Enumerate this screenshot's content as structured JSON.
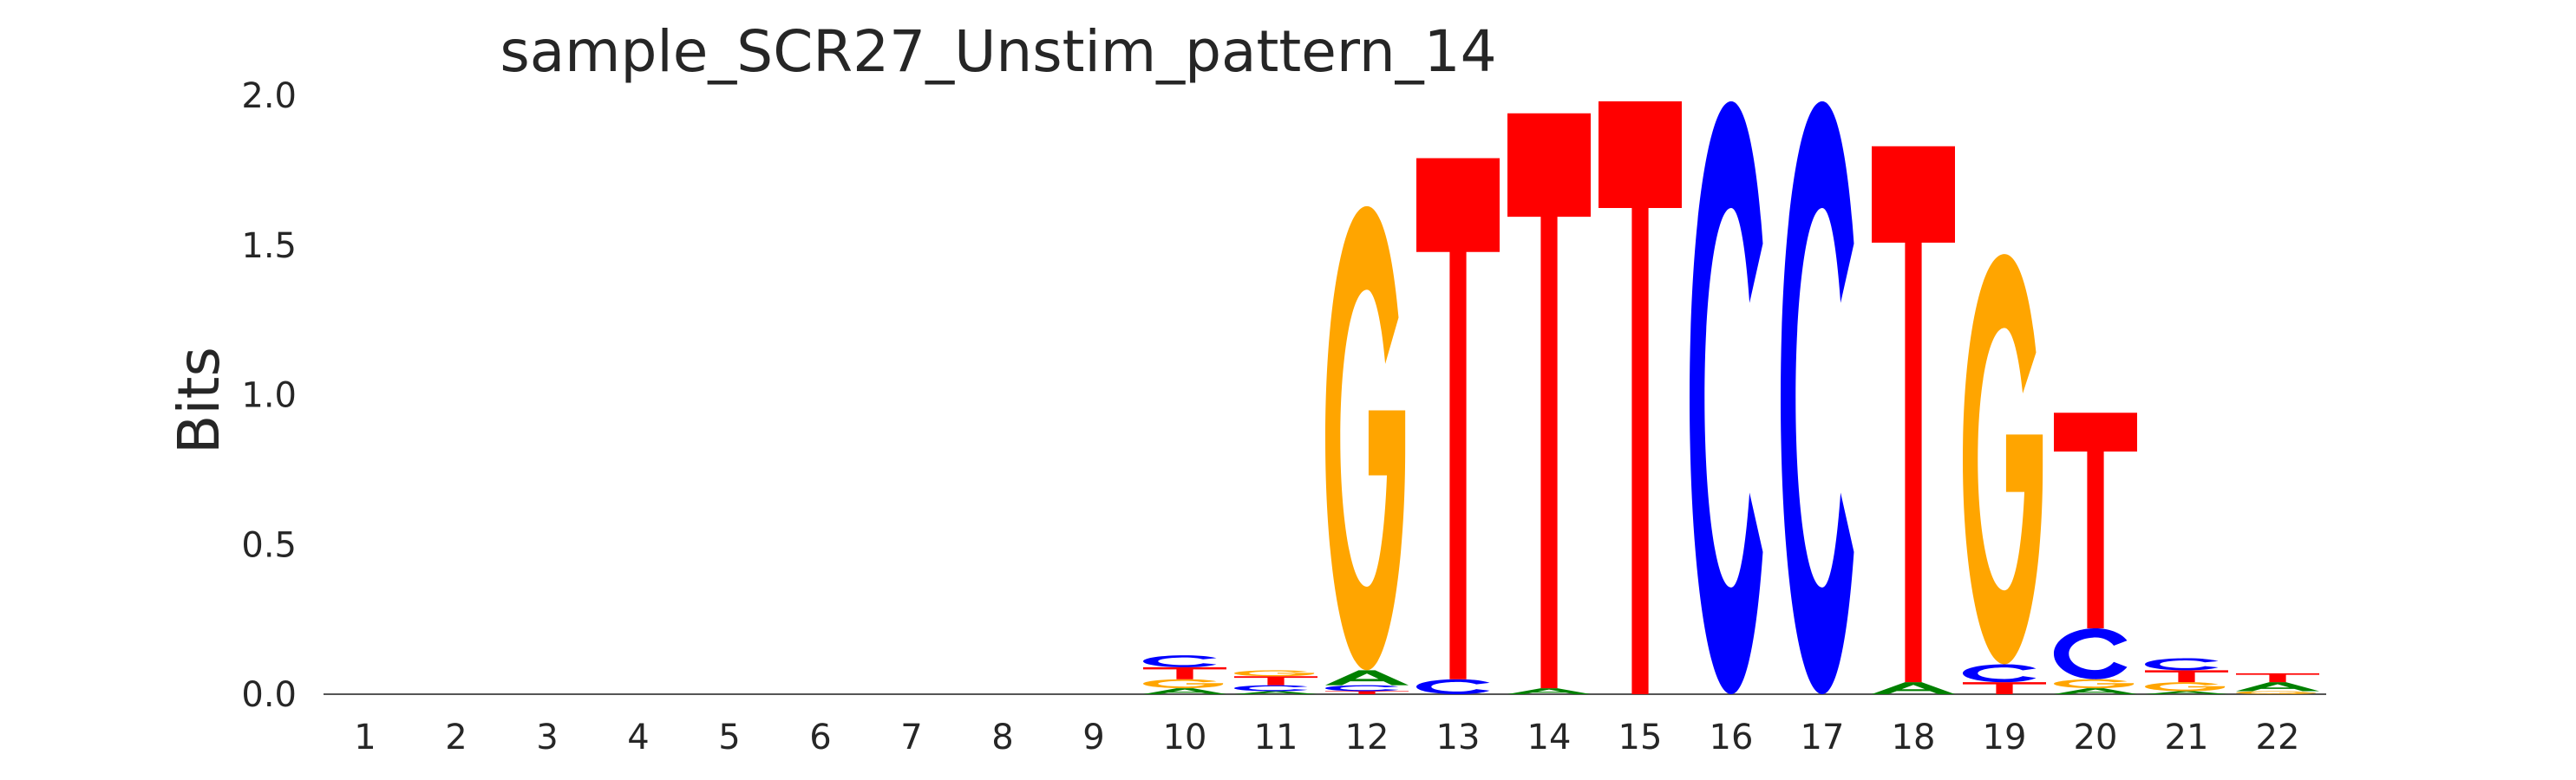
{
  "chart_data": {
    "type": "sequence-logo",
    "title": "sample_SCR27_Unstim_pattern_14",
    "xlabel": "",
    "ylabel": "Bits",
    "ylim": [
      0,
      2.0
    ],
    "yticks": [
      "0.0",
      "0.5",
      "1.0",
      "1.5",
      "2.0"
    ],
    "positions": [
      "1",
      "2",
      "3",
      "4",
      "5",
      "6",
      "7",
      "8",
      "9",
      "10",
      "11",
      "12",
      "13",
      "14",
      "15",
      "16",
      "17",
      "18",
      "19",
      "20",
      "21",
      "22"
    ],
    "colors": {
      "A": "#008000",
      "C": "#0000ff",
      "G": "#ffa500",
      "T": "#ff0000"
    },
    "columns": [
      [],
      [],
      [],
      [],
      [],
      [],
      [],
      [],
      [],
      [
        {
          "base": "A",
          "height": 0.02
        },
        {
          "base": "G",
          "height": 0.03
        },
        {
          "base": "T",
          "height": 0.04
        },
        {
          "base": "C",
          "height": 0.04
        }
      ],
      [
        {
          "base": "A",
          "height": 0.01
        },
        {
          "base": "C",
          "height": 0.02
        },
        {
          "base": "T",
          "height": 0.03
        },
        {
          "base": "G",
          "height": 0.02
        }
      ],
      [
        {
          "base": "T",
          "height": 0.01
        },
        {
          "base": "C",
          "height": 0.02
        },
        {
          "base": "A",
          "height": 0.05
        },
        {
          "base": "G",
          "height": 1.55
        }
      ],
      [
        {
          "base": "C",
          "height": 0.05
        },
        {
          "base": "T",
          "height": 1.74
        }
      ],
      [
        {
          "base": "A",
          "height": 0.02
        },
        {
          "base": "T",
          "height": 1.92
        }
      ],
      [
        {
          "base": "T",
          "height": 1.98
        }
      ],
      [
        {
          "base": "C",
          "height": 1.98
        }
      ],
      [
        {
          "base": "C",
          "height": 1.98
        }
      ],
      [
        {
          "base": "A",
          "height": 0.04
        },
        {
          "base": "T",
          "height": 1.79
        }
      ],
      [
        {
          "base": "T",
          "height": 0.04
        },
        {
          "base": "C",
          "height": 0.06
        },
        {
          "base": "G",
          "height": 1.37
        }
      ],
      [
        {
          "base": "A",
          "height": 0.02
        },
        {
          "base": "G",
          "height": 0.03
        },
        {
          "base": "C",
          "height": 0.17
        },
        {
          "base": "T",
          "height": 0.72
        }
      ],
      [
        {
          "base": "A",
          "height": 0.01
        },
        {
          "base": "G",
          "height": 0.03
        },
        {
          "base": "T",
          "height": 0.04
        },
        {
          "base": "C",
          "height": 0.04
        }
      ],
      [
        {
          "base": "G",
          "height": 0.01
        },
        {
          "base": "A",
          "height": 0.03
        },
        {
          "base": "T",
          "height": 0.03
        }
      ]
    ]
  }
}
